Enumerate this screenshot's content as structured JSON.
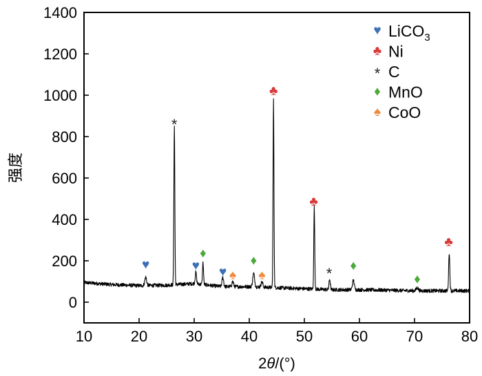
{
  "chart_data": {
    "type": "line",
    "ylabel": "强度",
    "xlabel_parts": {
      "prefix": "2",
      "var": "θ",
      "suffix": "/(°)"
    },
    "xlim": [
      10,
      80
    ],
    "ylim": [
      -100,
      1400
    ],
    "xticks": [
      10,
      20,
      30,
      40,
      50,
      60,
      70,
      80
    ],
    "yticks": [
      0,
      200,
      400,
      600,
      800,
      1000,
      1200,
      1400
    ],
    "grid": false,
    "legend_position": "top-right",
    "series": [
      {
        "baseline": [
          [
            10,
            95
          ],
          [
            15,
            85
          ],
          [
            20,
            80
          ],
          [
            25,
            82
          ],
          [
            30,
            90
          ],
          [
            35,
            75
          ],
          [
            40,
            75
          ],
          [
            45,
            70
          ],
          [
            50,
            65
          ],
          [
            55,
            60
          ],
          [
            60,
            60
          ],
          [
            65,
            58
          ],
          [
            70,
            55
          ],
          [
            75,
            55
          ],
          [
            80,
            55
          ]
        ],
        "peaks": [
          {
            "x": 21.2,
            "height": 40,
            "width": 0.35
          },
          {
            "x": 26.4,
            "height": 770,
            "width": 0.18
          },
          {
            "x": 30.3,
            "height": 55,
            "width": 0.25
          },
          {
            "x": 31.6,
            "height": 105,
            "width": 0.2
          },
          {
            "x": 35.2,
            "height": 45,
            "width": 0.3
          },
          {
            "x": 37.0,
            "height": 25,
            "width": 0.3
          },
          {
            "x": 40.8,
            "height": 65,
            "width": 0.35
          },
          {
            "x": 42.3,
            "height": 25,
            "width": 0.35
          },
          {
            "x": 44.4,
            "height": 905,
            "width": 0.17
          },
          {
            "x": 51.8,
            "height": 395,
            "width": 0.18
          },
          {
            "x": 54.6,
            "height": 50,
            "width": 0.25
          },
          {
            "x": 58.9,
            "height": 45,
            "width": 0.35
          },
          {
            "x": 70.5,
            "height": 15,
            "width": 0.4
          },
          {
            "x": 76.3,
            "height": 185,
            "width": 0.22
          }
        ],
        "noise": 9
      }
    ],
    "legend": [
      {
        "symbol": "♥",
        "label": "LiCO",
        "subscript": "3",
        "color": "#3d6fb5"
      },
      {
        "symbol": "♣",
        "label": "Ni",
        "subscript": "",
        "color": "#d83a3a"
      },
      {
        "symbol": "*",
        "label": "C",
        "subscript": "",
        "color": "#222222"
      },
      {
        "symbol": "♦",
        "label": "MnO",
        "subscript": "",
        "color": "#4daa3a"
      },
      {
        "symbol": "♠",
        "label": "CoO",
        "subscript": "",
        "color": "#f08a3c"
      }
    ],
    "annotations": [
      {
        "symbol": "♥",
        "color": "#3d6fb5",
        "x": 21.2,
        "y": 185
      },
      {
        "symbol": "*",
        "color": "#222222",
        "x": 26.4,
        "y": 870
      },
      {
        "symbol": "♥",
        "color": "#3d6fb5",
        "x": 30.3,
        "y": 180
      },
      {
        "symbol": "♦",
        "color": "#4daa3a",
        "x": 31.6,
        "y": 240
      },
      {
        "symbol": "♥",
        "color": "#3d6fb5",
        "x": 35.2,
        "y": 150
      },
      {
        "symbol": "♠",
        "color": "#f08a3c",
        "x": 37.0,
        "y": 135
      },
      {
        "symbol": "♦",
        "color": "#4daa3a",
        "x": 40.8,
        "y": 205
      },
      {
        "symbol": "♠",
        "color": "#f08a3c",
        "x": 42.3,
        "y": 135
      },
      {
        "symbol": "♣",
        "color": "#d83a3a",
        "x": 44.4,
        "y": 1025
      },
      {
        "symbol": "♣",
        "color": "#d83a3a",
        "x": 51.7,
        "y": 490
      },
      {
        "symbol": "*",
        "color": "#222222",
        "x": 54.5,
        "y": 150
      },
      {
        "symbol": "♦",
        "color": "#4daa3a",
        "x": 58.9,
        "y": 180
      },
      {
        "symbol": "♦",
        "color": "#4daa3a",
        "x": 70.5,
        "y": 115
      },
      {
        "symbol": "♣",
        "color": "#d83a3a",
        "x": 76.2,
        "y": 295
      }
    ]
  }
}
